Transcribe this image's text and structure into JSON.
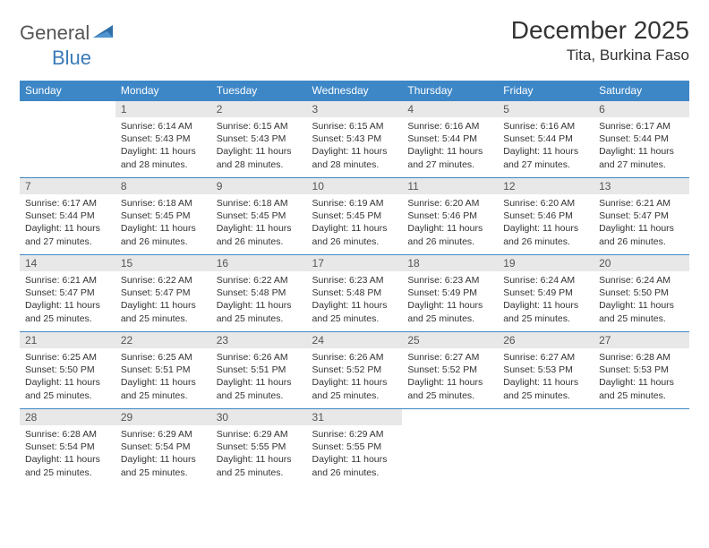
{
  "logo": {
    "word1": "General",
    "word2": "Blue"
  },
  "title": "December 2025",
  "location": "Tita, Burkina Faso",
  "colors": {
    "header_bg": "#3d87c7",
    "header_text": "#ffffff",
    "daynum_bg": "#e8e8e8",
    "border": "#3d87c7",
    "body_bg": "#ffffff",
    "text": "#333333",
    "logo_gray": "#555555",
    "logo_blue": "#3a7ab8"
  },
  "columns": [
    "Sunday",
    "Monday",
    "Tuesday",
    "Wednesday",
    "Thursday",
    "Friday",
    "Saturday"
  ],
  "weeks": [
    [
      {
        "n": "",
        "sr": "",
        "ss": "",
        "dl": ""
      },
      {
        "n": "1",
        "sr": "6:14 AM",
        "ss": "5:43 PM",
        "dl": "11 hours and 28 minutes."
      },
      {
        "n": "2",
        "sr": "6:15 AM",
        "ss": "5:43 PM",
        "dl": "11 hours and 28 minutes."
      },
      {
        "n": "3",
        "sr": "6:15 AM",
        "ss": "5:43 PM",
        "dl": "11 hours and 28 minutes."
      },
      {
        "n": "4",
        "sr": "6:16 AM",
        "ss": "5:44 PM",
        "dl": "11 hours and 27 minutes."
      },
      {
        "n": "5",
        "sr": "6:16 AM",
        "ss": "5:44 PM",
        "dl": "11 hours and 27 minutes."
      },
      {
        "n": "6",
        "sr": "6:17 AM",
        "ss": "5:44 PM",
        "dl": "11 hours and 27 minutes."
      }
    ],
    [
      {
        "n": "7",
        "sr": "6:17 AM",
        "ss": "5:44 PM",
        "dl": "11 hours and 27 minutes."
      },
      {
        "n": "8",
        "sr": "6:18 AM",
        "ss": "5:45 PM",
        "dl": "11 hours and 26 minutes."
      },
      {
        "n": "9",
        "sr": "6:18 AM",
        "ss": "5:45 PM",
        "dl": "11 hours and 26 minutes."
      },
      {
        "n": "10",
        "sr": "6:19 AM",
        "ss": "5:45 PM",
        "dl": "11 hours and 26 minutes."
      },
      {
        "n": "11",
        "sr": "6:20 AM",
        "ss": "5:46 PM",
        "dl": "11 hours and 26 minutes."
      },
      {
        "n": "12",
        "sr": "6:20 AM",
        "ss": "5:46 PM",
        "dl": "11 hours and 26 minutes."
      },
      {
        "n": "13",
        "sr": "6:21 AM",
        "ss": "5:47 PM",
        "dl": "11 hours and 26 minutes."
      }
    ],
    [
      {
        "n": "14",
        "sr": "6:21 AM",
        "ss": "5:47 PM",
        "dl": "11 hours and 25 minutes."
      },
      {
        "n": "15",
        "sr": "6:22 AM",
        "ss": "5:47 PM",
        "dl": "11 hours and 25 minutes."
      },
      {
        "n": "16",
        "sr": "6:22 AM",
        "ss": "5:48 PM",
        "dl": "11 hours and 25 minutes."
      },
      {
        "n": "17",
        "sr": "6:23 AM",
        "ss": "5:48 PM",
        "dl": "11 hours and 25 minutes."
      },
      {
        "n": "18",
        "sr": "6:23 AM",
        "ss": "5:49 PM",
        "dl": "11 hours and 25 minutes."
      },
      {
        "n": "19",
        "sr": "6:24 AM",
        "ss": "5:49 PM",
        "dl": "11 hours and 25 minutes."
      },
      {
        "n": "20",
        "sr": "6:24 AM",
        "ss": "5:50 PM",
        "dl": "11 hours and 25 minutes."
      }
    ],
    [
      {
        "n": "21",
        "sr": "6:25 AM",
        "ss": "5:50 PM",
        "dl": "11 hours and 25 minutes."
      },
      {
        "n": "22",
        "sr": "6:25 AM",
        "ss": "5:51 PM",
        "dl": "11 hours and 25 minutes."
      },
      {
        "n": "23",
        "sr": "6:26 AM",
        "ss": "5:51 PM",
        "dl": "11 hours and 25 minutes."
      },
      {
        "n": "24",
        "sr": "6:26 AM",
        "ss": "5:52 PM",
        "dl": "11 hours and 25 minutes."
      },
      {
        "n": "25",
        "sr": "6:27 AM",
        "ss": "5:52 PM",
        "dl": "11 hours and 25 minutes."
      },
      {
        "n": "26",
        "sr": "6:27 AM",
        "ss": "5:53 PM",
        "dl": "11 hours and 25 minutes."
      },
      {
        "n": "27",
        "sr": "6:28 AM",
        "ss": "5:53 PM",
        "dl": "11 hours and 25 minutes."
      }
    ],
    [
      {
        "n": "28",
        "sr": "6:28 AM",
        "ss": "5:54 PM",
        "dl": "11 hours and 25 minutes."
      },
      {
        "n": "29",
        "sr": "6:29 AM",
        "ss": "5:54 PM",
        "dl": "11 hours and 25 minutes."
      },
      {
        "n": "30",
        "sr": "6:29 AM",
        "ss": "5:55 PM",
        "dl": "11 hours and 25 minutes."
      },
      {
        "n": "31",
        "sr": "6:29 AM",
        "ss": "5:55 PM",
        "dl": "11 hours and 26 minutes."
      },
      {
        "n": "",
        "sr": "",
        "ss": "",
        "dl": ""
      },
      {
        "n": "",
        "sr": "",
        "ss": "",
        "dl": ""
      },
      {
        "n": "",
        "sr": "",
        "ss": "",
        "dl": ""
      }
    ]
  ],
  "labels": {
    "sunrise": "Sunrise:",
    "sunset": "Sunset:",
    "daylight": "Daylight:"
  }
}
